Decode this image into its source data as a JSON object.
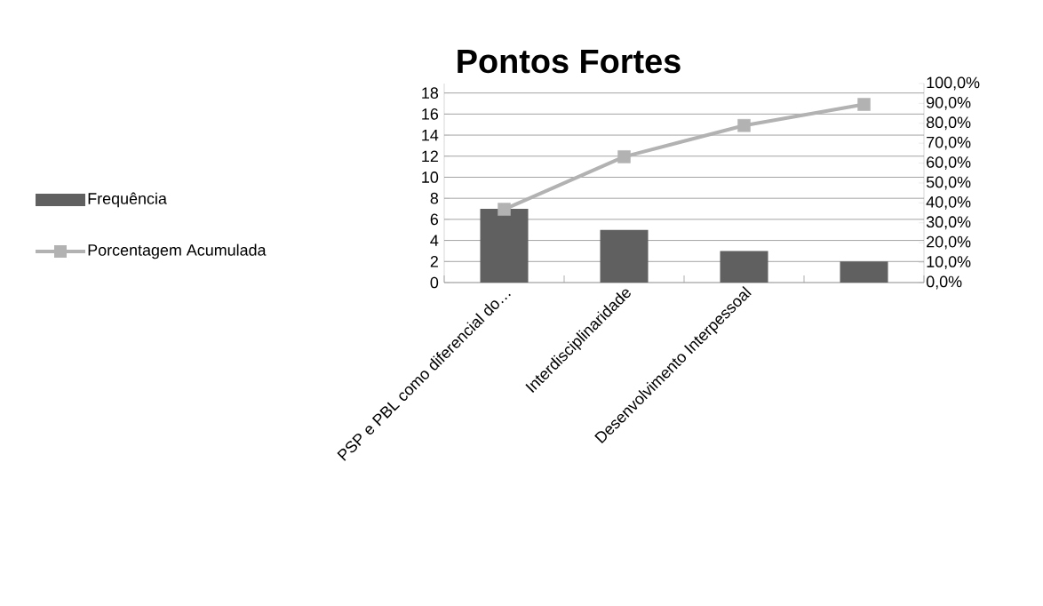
{
  "chart_data": {
    "type": "bar",
    "title": "Pontos Fortes",
    "categories": [
      "PSP e PBL como diferencial do…",
      "Interdisciplinaridade",
      "Desenvolvimento Interpessoal",
      null
    ],
    "series": [
      {
        "name": "Frequência",
        "color": "#606060",
        "values": [
          7,
          5,
          3,
          2
        ]
      },
      {
        "name": "Porcentagem Acumulada",
        "type": "line",
        "axis": "y2",
        "color": "#b2b2b2",
        "marker": "square",
        "values": [
          36.8,
          63.2,
          78.9,
          89.5
        ]
      }
    ],
    "ylim": [
      0,
      18.9
    ],
    "yticks": [
      0,
      2,
      4,
      6,
      8,
      10,
      12,
      14,
      16,
      18
    ],
    "y2lim": [
      0,
      100
    ],
    "y2ticks": [
      {
        "value": 0,
        "label": "0,0%"
      },
      {
        "value": 10,
        "label": "10,0%"
      },
      {
        "value": 20,
        "label": "20,0%"
      },
      {
        "value": 30,
        "label": "30,0%"
      },
      {
        "value": 40,
        "label": "40,0%"
      },
      {
        "value": 50,
        "label": "50,0%"
      },
      {
        "value": 60,
        "label": "60,0%"
      },
      {
        "value": 70,
        "label": "70,0%"
      },
      {
        "value": 80,
        "label": "80,0%"
      },
      {
        "value": 90,
        "label": "90,0%"
      },
      {
        "value": 100,
        "label": "100,0%"
      }
    ],
    "grid": "y",
    "legend": "left"
  }
}
